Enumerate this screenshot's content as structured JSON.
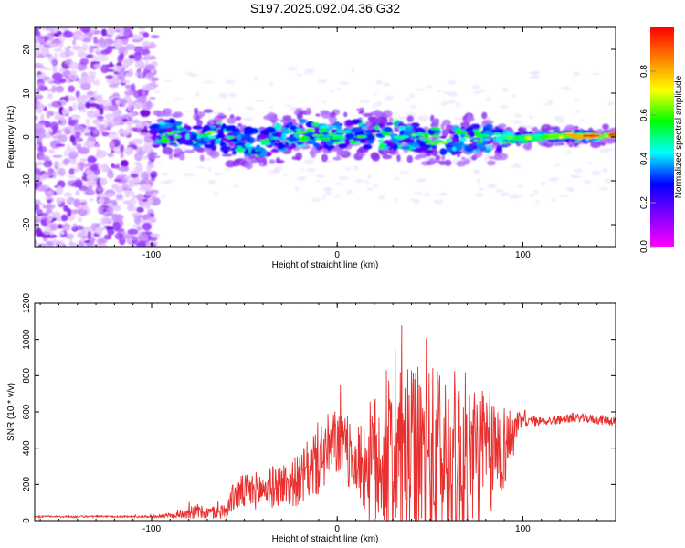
{
  "title": "S197.2025.092.04.36.G32",
  "chart_data": [
    {
      "type": "heatmap",
      "xlabel": "Height of straight line (km)",
      "ylabel": "Frequency (Hz)",
      "xlim": [
        -163,
        150
      ],
      "ylim": [
        -25,
        25
      ],
      "x_ticks": [
        -100,
        0,
        100
      ],
      "y_ticks": [
        -20,
        -10,
        0,
        10,
        20
      ],
      "colorbar": {
        "label": "Normalized spectral amplitude",
        "range": [
          0,
          1
        ],
        "ticks": [
          "0.0",
          "0.2",
          "0.4",
          "0.6",
          "0.8"
        ],
        "colors": [
          "#ff00ff",
          "#8000ff",
          "#0000ff",
          "#00ffff",
          "#00ff00",
          "#ffff00",
          "#ff8000",
          "#ff0000"
        ]
      },
      "ridge_center": [
        [
          -100,
          0.5
        ],
        [
          -90,
          1.0
        ],
        [
          -80,
          0.5
        ],
        [
          -70,
          0.5
        ],
        [
          -60,
          -0.5
        ],
        [
          -50,
          -1.0
        ],
        [
          -40,
          -1.5
        ],
        [
          -30,
          0.0
        ],
        [
          -20,
          1.0
        ],
        [
          -10,
          0.0
        ],
        [
          0,
          0.5
        ],
        [
          10,
          1.0
        ],
        [
          20,
          0.0
        ],
        [
          30,
          0.5
        ],
        [
          40,
          0.0
        ],
        [
          50,
          -0.5
        ],
        [
          60,
          -1.0
        ],
        [
          70,
          -0.5
        ],
        [
          80,
          -0.5
        ],
        [
          90,
          0.0
        ],
        [
          100,
          -0.3
        ],
        [
          110,
          0.0
        ],
        [
          120,
          0.2
        ],
        [
          130,
          0.3
        ],
        [
          140,
          0.3
        ],
        [
          150,
          0.4
        ]
      ]
    },
    {
      "type": "line",
      "xlabel": "Height of straight line (km)",
      "ylabel": "SNR (10 * v/v)",
      "xlim": [
        -163,
        150
      ],
      "ylim": [
        0,
        1200
      ],
      "x_ticks": [
        -100,
        0,
        100
      ],
      "y_ticks": [
        0,
        200,
        400,
        600,
        800,
        1000,
        1200
      ],
      "color": "#e8302e",
      "envelope": {
        "x": [
          -163,
          -100,
          -85,
          -80,
          -70,
          -60,
          -55,
          -40,
          -20,
          -10,
          0,
          10,
          20,
          30,
          45,
          60,
          70,
          80,
          90,
          100,
          110,
          130,
          150
        ],
        "base": [
          20,
          20,
          25,
          40,
          30,
          40,
          120,
          140,
          180,
          280,
          380,
          260,
          200,
          220,
          200,
          170,
          180,
          230,
          340,
          540,
          540,
          560,
          540
        ],
        "amp": [
          8,
          10,
          30,
          70,
          60,
          70,
          160,
          180,
          240,
          350,
          320,
          300,
          650,
          750,
          850,
          880,
          820,
          650,
          400,
          60,
          40,
          40,
          50
        ]
      }
    }
  ]
}
